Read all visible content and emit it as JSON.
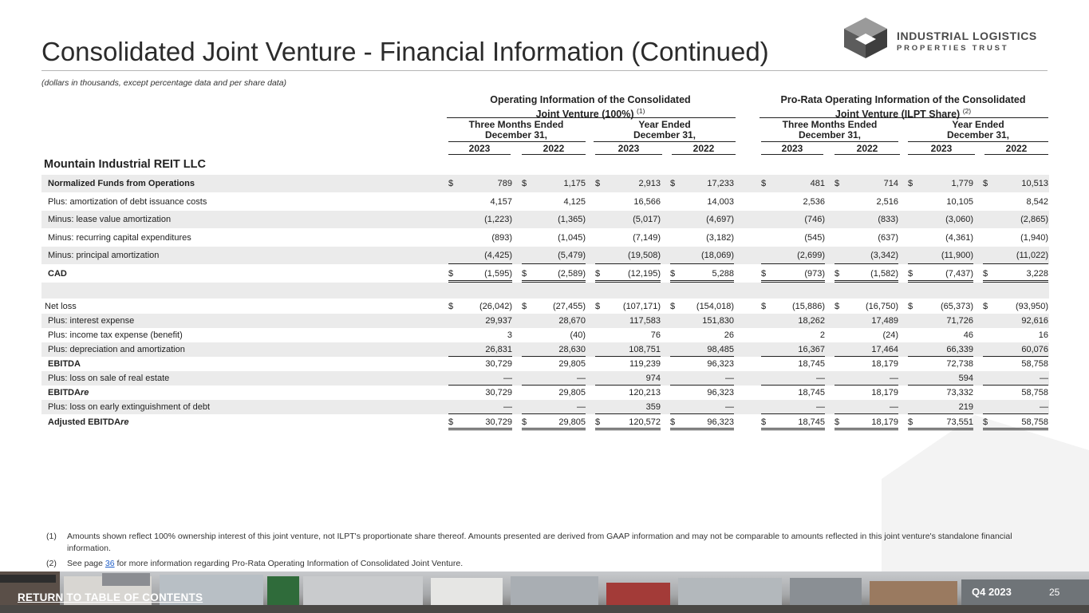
{
  "page": {
    "title": "Consolidated Joint Venture - Financial Information (Continued)",
    "subtitle": "(dollars in thousands, except percentage data and per share data)",
    "section_title": "Mountain Industrial REIT LLC"
  },
  "logo": {
    "line1": "INDUSTRIAL LOGISTICS",
    "line2": "PROPERTIES TRUST"
  },
  "table": {
    "group_left": {
      "line1": "Operating Information of the Consolidated",
      "line2": "Joint Venture (100%)",
      "sup": "(1)"
    },
    "group_right": {
      "line1": "Pro-Rata Operating Information of the Consolidated",
      "line2": "Joint Venture (ILPT Share)",
      "sup": "(2)"
    },
    "period_three": {
      "line1": "Three Months Ended",
      "line2": "December 31,"
    },
    "period_year": {
      "line1": "Year Ended",
      "line2": "December 31,"
    },
    "years": [
      "2023",
      "2022",
      "2023",
      "2022",
      "2023",
      "2022",
      "2023",
      "2022"
    ],
    "rows": [
      {
        "label": "Normalized Funds from Operations",
        "values": [
          "789",
          "1,175",
          "2,913",
          "17,233",
          "481",
          "714",
          "1,779",
          "10,513"
        ]
      },
      {
        "label": "Plus: amortization of debt issuance costs",
        "values": [
          "4,157",
          "4,125",
          "16,566",
          "14,003",
          "2,536",
          "2,516",
          "10,105",
          "8,542"
        ]
      },
      {
        "label": "Minus: lease value amortization",
        "values": [
          "(1,223)",
          "(1,365)",
          "(5,017)",
          "(4,697)",
          "(746)",
          "(833)",
          "(3,060)",
          "(2,865)"
        ]
      },
      {
        "label": "Minus: recurring capital expenditures",
        "values": [
          "(893)",
          "(1,045)",
          "(7,149)",
          "(3,182)",
          "(545)",
          "(637)",
          "(4,361)",
          "(1,940)"
        ]
      },
      {
        "label": "Minus: principal amortization",
        "values": [
          "(4,425)",
          "(5,479)",
          "(19,508)",
          "(18,069)",
          "(2,699)",
          "(3,342)",
          "(11,900)",
          "(11,022)"
        ]
      },
      {
        "label": "CAD",
        "values": [
          "(1,595)",
          "(2,589)",
          "(12,195)",
          "5,288",
          "(973)",
          "(1,582)",
          "(7,437)",
          "3,228"
        ]
      },
      {
        "label": "",
        "values": [
          "",
          "",
          "",
          "",
          "",
          "",
          "",
          ""
        ]
      },
      {
        "label": "Net loss",
        "values": [
          "(26,042)",
          "(27,455)",
          "(107,171)",
          "(154,018)",
          "(15,886)",
          "(16,750)",
          "(65,373)",
          "(93,950)"
        ]
      },
      {
        "label": "Plus: interest expense",
        "values": [
          "29,937",
          "28,670",
          "117,583",
          "151,830",
          "18,262",
          "17,489",
          "71,726",
          "92,616"
        ]
      },
      {
        "label": "Plus: income tax expense (benefit)",
        "values": [
          "3",
          "(40)",
          "76",
          "26",
          "2",
          "(24)",
          "46",
          "16"
        ]
      },
      {
        "label": "Plus: depreciation and amortization",
        "values": [
          "26,831",
          "28,630",
          "108,751",
          "98,485",
          "16,367",
          "17,464",
          "66,339",
          "60,076"
        ]
      },
      {
        "label": "EBITDA",
        "values": [
          "30,729",
          "29,805",
          "119,239",
          "96,323",
          "18,745",
          "18,179",
          "72,738",
          "58,758"
        ]
      },
      {
        "label": "Plus: loss on sale of real estate",
        "values": [
          "—",
          "—",
          "974",
          "—",
          "—",
          "—",
          "594",
          "—"
        ]
      },
      {
        "label": "EBITDAre",
        "label_main": "EBITDA",
        "label_italic": "re",
        "values": [
          "30,729",
          "29,805",
          "120,213",
          "96,323",
          "18,745",
          "18,179",
          "73,332",
          "58,758"
        ]
      },
      {
        "label": "Plus: loss on early extinguishment of debt",
        "values": [
          "—",
          "—",
          "359",
          "—",
          "—",
          "—",
          "219",
          "—"
        ]
      },
      {
        "label": "Adjusted EBITDAre",
        "label_main": "Adjusted EBITDA",
        "label_italic": "re",
        "values": [
          "30,729",
          "29,805",
          "120,572",
          "96,323",
          "18,745",
          "18,179",
          "73,551",
          "58,758"
        ]
      }
    ],
    "currency_symbol": "$"
  },
  "footnotes": {
    "fn1_num": "(1)",
    "fn1_text": "Amounts shown reflect 100% ownership interest of this joint venture, not ILPT's proportionate share thereof. Amounts presented are derived from GAAP information and may not be comparable to amounts reflected in this joint venture's standalone financial information.",
    "fn2_num": "(2)",
    "fn2_pre": "See page ",
    "fn2_link": "36",
    "fn2_post": " for more information regarding Pro-Rata Operating Information of Consolidated Joint Venture."
  },
  "footer": {
    "return_link": "RETURN TO TABLE OF CONTENTS",
    "quarter": "Q4 2023",
    "page_number": "25"
  }
}
